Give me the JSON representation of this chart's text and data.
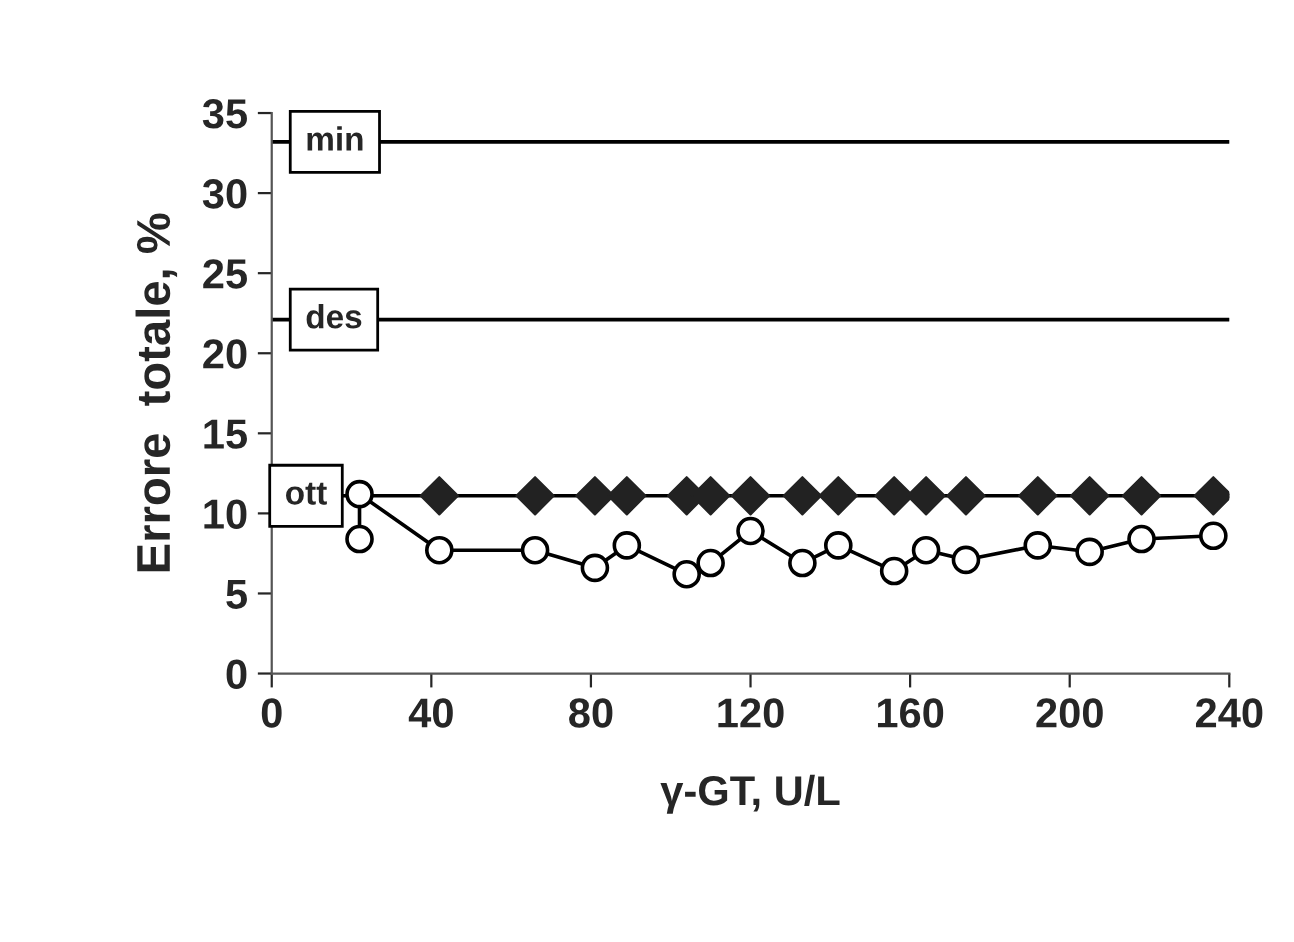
{
  "chart_data": {
    "type": "line",
    "xlabel": "γ-GT, U/L",
    "ylabel": "Errore  totale, %",
    "xlim": [
      0,
      240
    ],
    "xticks": [
      0,
      40,
      80,
      120,
      160,
      200,
      240
    ],
    "ylim": [
      0,
      35
    ],
    "yticks": [
      0,
      5,
      10,
      15,
      20,
      25,
      30,
      35
    ],
    "grid": false,
    "legend": false,
    "series": [
      {
        "type": "scatter",
        "color": "#222222",
        "marker": "diamond",
        "x": [
          42,
          66,
          81,
          89,
          104,
          110,
          120,
          133,
          142,
          156,
          164,
          174,
          192,
          205,
          218,
          236
        ],
        "values": [
          11.1,
          11.1,
          11.1,
          11.1,
          11.1,
          11.1,
          11.1,
          11.1,
          11.1,
          11.1,
          11.1,
          11.1,
          11.1,
          11.1,
          11.1,
          11.1
        ]
      },
      {
        "type": "line",
        "color": "#000000",
        "marker": "circle",
        "x": [
          22,
          22,
          42,
          66,
          81,
          89,
          104,
          110,
          120,
          133,
          142,
          156,
          164,
          174,
          192,
          205,
          218,
          236
        ],
        "values": [
          8.4,
          11.2,
          7.7,
          7.7,
          6.6,
          8.0,
          6.2,
          6.9,
          8.9,
          6.9,
          8.0,
          6.4,
          7.7,
          7.1,
          8.0,
          7.6,
          8.4,
          8.6
        ]
      }
    ],
    "ref_lines": [
      {
        "axis": "y",
        "value": 33.2,
        "label": "min"
      },
      {
        "axis": "y",
        "value": 22.1,
        "label": "des"
      },
      {
        "axis": "y",
        "value": 11.1,
        "label": "ott"
      }
    ]
  }
}
